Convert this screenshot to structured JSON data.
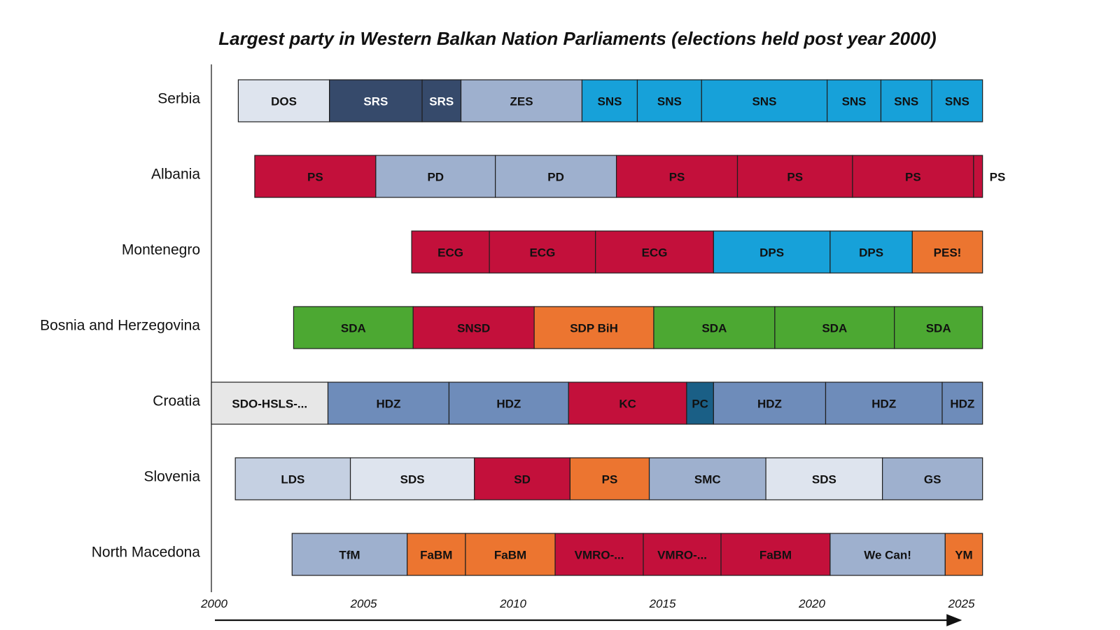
{
  "chart_data": {
    "type": "timeline",
    "title": "Largest party in Western Balkan Nation Parliaments (elections held post year 2000)",
    "x_ticks": [
      2000,
      2005,
      2010,
      2015,
      2020,
      2025
    ],
    "xlim": [
      2000,
      2025.8
    ],
    "rows": [
      {
        "country": "Serbia",
        "segments": [
          {
            "label": "DOS",
            "start": 2000.9,
            "end": 2003.95,
            "color": "#dee4ee",
            "text_color": "#111111"
          },
          {
            "label": "SRS",
            "start": 2003.95,
            "end": 2007.05,
            "color": "#364a6b",
            "text_color": "#ffffff"
          },
          {
            "label": "SRS",
            "start": 2007.05,
            "end": 2008.35,
            "color": "#364a6b",
            "text_color": "#ffffff"
          },
          {
            "label": "ZES",
            "start": 2008.35,
            "end": 2012.4,
            "color": "#9eb0ce",
            "text_color": "#111111"
          },
          {
            "label": "SNS",
            "start": 2012.4,
            "end": 2014.25,
            "color": "#17a1d9",
            "text_color": "#111111"
          },
          {
            "label": "SNS",
            "start": 2014.25,
            "end": 2016.4,
            "color": "#17a1d9",
            "text_color": "#111111"
          },
          {
            "label": "SNS",
            "start": 2016.4,
            "end": 2020.6,
            "color": "#17a1d9",
            "text_color": "#111111"
          },
          {
            "label": "SNS",
            "start": 2020.6,
            "end": 2022.4,
            "color": "#17a1d9",
            "text_color": "#111111"
          },
          {
            "label": "SNS",
            "start": 2022.4,
            "end": 2024.1,
            "color": "#17a1d9",
            "text_color": "#111111"
          },
          {
            "label": "SNS",
            "start": 2024.1,
            "end": 2025.8,
            "color": "#17a1d9",
            "text_color": "#111111"
          }
        ]
      },
      {
        "country": "Albania",
        "segments": [
          {
            "label": "PS",
            "start": 2001.45,
            "end": 2005.5,
            "color": "#c3103b",
            "text_color": "#111111"
          },
          {
            "label": "PD",
            "start": 2005.5,
            "end": 2009.5,
            "color": "#9eb0ce",
            "text_color": "#111111"
          },
          {
            "label": "PD",
            "start": 2009.5,
            "end": 2013.55,
            "color": "#9eb0ce",
            "text_color": "#111111"
          },
          {
            "label": "PS",
            "start": 2013.55,
            "end": 2017.6,
            "color": "#c3103b",
            "text_color": "#111111"
          },
          {
            "label": "PS",
            "start": 2017.6,
            "end": 2021.45,
            "color": "#c3103b",
            "text_color": "#111111"
          },
          {
            "label": "PS",
            "start": 2021.45,
            "end": 2025.5,
            "color": "#c3103b",
            "text_color": "#111111"
          },
          {
            "label": "PS",
            "start": 2025.5,
            "end": 2025.8,
            "color": "#c3103b",
            "text_color": "#111111",
            "label_outside": true
          }
        ]
      },
      {
        "country": "Montenegro",
        "segments": [
          {
            "label": "ECG",
            "start": 2006.7,
            "end": 2009.3,
            "color": "#c3103b",
            "text_color": "#111111"
          },
          {
            "label": "ECG",
            "start": 2009.3,
            "end": 2012.85,
            "color": "#c3103b",
            "text_color": "#111111"
          },
          {
            "label": "ECG",
            "start": 2012.85,
            "end": 2016.8,
            "color": "#c3103b",
            "text_color": "#111111"
          },
          {
            "label": "DPS",
            "start": 2016.8,
            "end": 2020.7,
            "color": "#17a1d9",
            "text_color": "#111111"
          },
          {
            "label": "DPS",
            "start": 2020.7,
            "end": 2023.45,
            "color": "#17a1d9",
            "text_color": "#111111"
          },
          {
            "label": "PES!",
            "start": 2023.45,
            "end": 2025.8,
            "color": "#ec7530",
            "text_color": "#111111"
          }
        ]
      },
      {
        "country": "Bosnia and Herzegovina",
        "segments": [
          {
            "label": "SDA",
            "start": 2002.75,
            "end": 2006.75,
            "color": "#4ca832",
            "text_color": "#111111"
          },
          {
            "label": "SNSD",
            "start": 2006.75,
            "end": 2010.8,
            "color": "#c3103b",
            "text_color": "#111111"
          },
          {
            "label": "SDP BiH",
            "start": 2010.8,
            "end": 2014.8,
            "color": "#ec7530",
            "text_color": "#111111"
          },
          {
            "label": "SDA",
            "start": 2014.8,
            "end": 2018.85,
            "color": "#4ca832",
            "text_color": "#111111"
          },
          {
            "label": "SDA",
            "start": 2018.85,
            "end": 2022.85,
            "color": "#4ca832",
            "text_color": "#111111"
          },
          {
            "label": "SDA",
            "start": 2022.85,
            "end": 2025.8,
            "color": "#4ca832",
            "text_color": "#111111"
          }
        ]
      },
      {
        "country": "Croatia",
        "segments": [
          {
            "label": "SDO-HSLS-...",
            "start": 2000.0,
            "end": 2003.9,
            "color": "#e7e7e7",
            "text_color": "#111111"
          },
          {
            "label": "HDZ",
            "start": 2003.9,
            "end": 2007.95,
            "color": "#6e8cba",
            "text_color": "#111111"
          },
          {
            "label": "HDZ",
            "start": 2007.95,
            "end": 2011.95,
            "color": "#6e8cba",
            "text_color": "#111111"
          },
          {
            "label": "KC",
            "start": 2011.95,
            "end": 2015.9,
            "color": "#c3103b",
            "text_color": "#111111"
          },
          {
            "label": "PC",
            "start": 2015.9,
            "end": 2016.8,
            "color": "#1a5f86",
            "text_color": "#111111"
          },
          {
            "label": "HDZ",
            "start": 2016.8,
            "end": 2020.55,
            "color": "#6e8cba",
            "text_color": "#111111"
          },
          {
            "label": "HDZ",
            "start": 2020.55,
            "end": 2024.45,
            "color": "#6e8cba",
            "text_color": "#111111"
          },
          {
            "label": "HDZ",
            "start": 2024.45,
            "end": 2025.8,
            "color": "#6e8cba",
            "text_color": "#111111"
          }
        ]
      },
      {
        "country": "Slovenia",
        "segments": [
          {
            "label": "LDS",
            "start": 2000.8,
            "end": 2004.65,
            "color": "#c5d0e2",
            "text_color": "#111111"
          },
          {
            "label": "SDS",
            "start": 2004.65,
            "end": 2008.8,
            "color": "#dee4ee",
            "text_color": "#111111"
          },
          {
            "label": "SD",
            "start": 2008.8,
            "end": 2012.0,
            "color": "#c3103b",
            "text_color": "#111111"
          },
          {
            "label": "PS",
            "start": 2012.0,
            "end": 2014.65,
            "color": "#ec7530",
            "text_color": "#111111"
          },
          {
            "label": "SMC",
            "start": 2014.65,
            "end": 2018.55,
            "color": "#9eb0ce",
            "text_color": "#111111"
          },
          {
            "label": "SDS",
            "start": 2018.55,
            "end": 2022.45,
            "color": "#dee4ee",
            "text_color": "#111111"
          },
          {
            "label": "GS",
            "start": 2022.45,
            "end": 2025.8,
            "color": "#9eb0ce",
            "text_color": "#111111"
          }
        ]
      },
      {
        "country": "North Macedona",
        "segments": [
          {
            "label": "TfM",
            "start": 2002.7,
            "end": 2006.55,
            "color": "#9eb0ce",
            "text_color": "#111111"
          },
          {
            "label": "FaBM",
            "start": 2006.55,
            "end": 2008.5,
            "color": "#ec7530",
            "text_color": "#111111"
          },
          {
            "label": "FaBM",
            "start": 2008.5,
            "end": 2011.5,
            "color": "#ec7530",
            "text_color": "#111111"
          },
          {
            "label": "VMRO-...",
            "start": 2011.5,
            "end": 2014.45,
            "color": "#c3103b",
            "text_color": "#111111"
          },
          {
            "label": "VMRO-...",
            "start": 2014.45,
            "end": 2017.05,
            "color": "#c3103b",
            "text_color": "#111111"
          },
          {
            "label": "FaBM",
            "start": 2017.05,
            "end": 2020.7,
            "color": "#c3103b",
            "text_color": "#111111"
          },
          {
            "label": "We Can!",
            "start": 2020.7,
            "end": 2024.55,
            "color": "#9eb0ce",
            "text_color": "#111111"
          },
          {
            "label": "YM",
            "start": 2024.55,
            "end": 2025.8,
            "color": "#ec7530",
            "text_color": "#111111"
          }
        ]
      }
    ]
  }
}
